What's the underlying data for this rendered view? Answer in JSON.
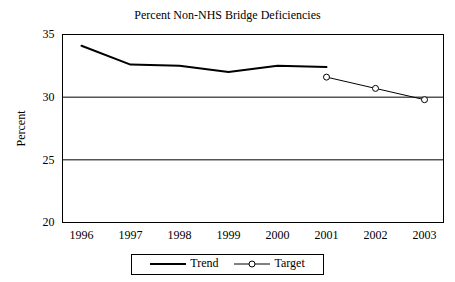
{
  "chart_data": {
    "type": "line",
    "title": "Percent Non-NHS Bridge Deficiencies",
    "y_label": "Percent",
    "categories": [
      "1996",
      "1997",
      "1998",
      "1999",
      "2000",
      "2001",
      "2002",
      "2003"
    ],
    "series": [
      {
        "name": "Trend",
        "color": "#000000",
        "marker": "none",
        "line_style": "solid",
        "values": [
          34.1,
          32.6,
          32.5,
          32.0,
          32.5,
          32.4,
          null,
          null
        ]
      },
      {
        "name": "Target",
        "color": "#000000",
        "marker": "circle",
        "line_style": "solid",
        "values": [
          null,
          null,
          null,
          null,
          null,
          31.6,
          30.7,
          29.8
        ]
      }
    ],
    "ylim": [
      20,
      35
    ],
    "yticks": [
      20,
      25,
      30,
      35
    ],
    "grid": true,
    "legend": "bottom"
  }
}
